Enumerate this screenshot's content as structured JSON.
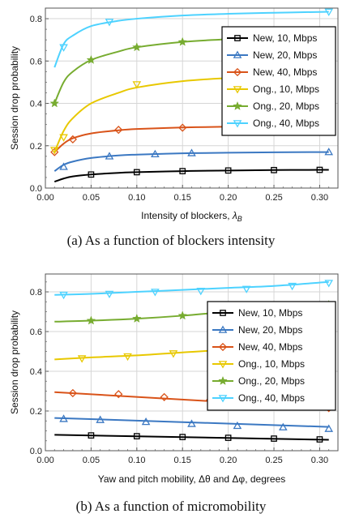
{
  "chart_data": [
    {
      "type": "line",
      "xlabel": "Intensity of blockers, ",
      "xlabel_symbol": "λ",
      "xlabel_sub": "B",
      "ylabel": "Session drop probability",
      "xlim": [
        0,
        0.32
      ],
      "ylim": [
        0,
        0.85
      ],
      "xticks": [
        "0.00",
        "0.05",
        "0.10",
        "0.15",
        "0.20",
        "0.25",
        "0.30"
      ],
      "yticks": [
        "0.0",
        "0.2",
        "0.4",
        "0.6",
        "0.8"
      ],
      "grid": true,
      "legend_position": "right",
      "caption": "(a) As a function of blockers intensity",
      "series": [
        {
          "name": "New, 10, Mbps",
          "color": "#000000",
          "marker": "square",
          "x": [
            0.01,
            0.02,
            0.03,
            0.05,
            0.08,
            0.1,
            0.15,
            0.2,
            0.25,
            0.3,
            0.31
          ],
          "y": [
            0.03,
            0.045,
            0.055,
            0.064,
            0.072,
            0.075,
            0.08,
            0.083,
            0.085,
            0.086,
            0.086
          ],
          "mx": [
            0.05,
            0.1,
            0.15,
            0.2,
            0.25,
            0.3
          ],
          "my": [
            0.064,
            0.075,
            0.08,
            0.083,
            0.085,
            0.086
          ]
        },
        {
          "name": "New, 20, Mbps",
          "color": "#3b78c2",
          "marker": "triangle",
          "x": [
            0.01,
            0.02,
            0.03,
            0.05,
            0.08,
            0.1,
            0.15,
            0.2,
            0.25,
            0.3,
            0.31
          ],
          "y": [
            0.08,
            0.11,
            0.125,
            0.142,
            0.154,
            0.158,
            0.164,
            0.167,
            0.169,
            0.17,
            0.17
          ],
          "mx": [
            0.02,
            0.07,
            0.12,
            0.16,
            0.31
          ],
          "my": [
            0.1,
            0.15,
            0.16,
            0.165,
            0.17
          ]
        },
        {
          "name": "New, 40, Mbps",
          "color": "#d95319",
          "marker": "diamond",
          "x": [
            0.01,
            0.02,
            0.03,
            0.05,
            0.08,
            0.1,
            0.15,
            0.2,
            0.25,
            0.3,
            0.31
          ],
          "y": [
            0.17,
            0.21,
            0.235,
            0.258,
            0.273,
            0.279,
            0.286,
            0.29,
            0.292,
            0.293,
            0.294
          ],
          "mx": [
            0.01,
            0.03,
            0.08,
            0.15,
            0.31
          ],
          "my": [
            0.17,
            0.23,
            0.275,
            0.285,
            0.295
          ]
        },
        {
          "name": "Ong., 10, Mbps",
          "color": "#e8c800",
          "marker": "triangle-down",
          "x": [
            0.01,
            0.02,
            0.03,
            0.05,
            0.08,
            0.1,
            0.15,
            0.2,
            0.25,
            0.3,
            0.31
          ],
          "y": [
            0.17,
            0.27,
            0.33,
            0.4,
            0.45,
            0.475,
            0.505,
            0.52,
            0.53,
            0.54,
            0.54
          ],
          "mx": [
            0.01,
            0.02,
            0.1,
            0.31
          ],
          "my": [
            0.18,
            0.24,
            0.49,
            0.54
          ]
        },
        {
          "name": "Ong., 20, Mbps",
          "color": "#77ac30",
          "marker": "star",
          "x": [
            0.01,
            0.02,
            0.03,
            0.05,
            0.08,
            0.1,
            0.15,
            0.2,
            0.25,
            0.3,
            0.31
          ],
          "y": [
            0.4,
            0.5,
            0.55,
            0.605,
            0.645,
            0.665,
            0.69,
            0.703,
            0.71,
            0.715,
            0.716
          ],
          "mx": [
            0.01,
            0.05,
            0.1,
            0.15,
            0.31
          ],
          "my": [
            0.4,
            0.605,
            0.665,
            0.69,
            0.716
          ]
        },
        {
          "name": "Ong., 40, Mbps",
          "color": "#4dd2ff",
          "marker": "triangle-down",
          "x": [
            0.01,
            0.02,
            0.03,
            0.05,
            0.08,
            0.1,
            0.15,
            0.2,
            0.25,
            0.3,
            0.31
          ],
          "y": [
            0.57,
            0.68,
            0.72,
            0.765,
            0.79,
            0.8,
            0.815,
            0.823,
            0.828,
            0.832,
            0.833
          ],
          "mx": [
            0.02,
            0.07,
            0.31
          ],
          "my": [
            0.665,
            0.785,
            0.833
          ]
        }
      ]
    },
    {
      "type": "line",
      "xlabel": "Yaw and pitch mobility, Δθ and Δφ, degrees",
      "ylabel": "Session drop probability",
      "xlim": [
        0,
        0.32
      ],
      "ylim": [
        0,
        0.89
      ],
      "xticks": [
        "0.00",
        "0.05",
        "0.10",
        "0.15",
        "0.20",
        "0.25",
        "0.30"
      ],
      "yticks": [
        "0.0",
        "0.2",
        "0.4",
        "0.6",
        "0.8"
      ],
      "grid": true,
      "legend_position": "right",
      "caption": "(b) As a function of micromobility",
      "series": [
        {
          "name": "New, 10, Mbps",
          "color": "#000000",
          "marker": "square",
          "x": [
            0.01,
            0.31
          ],
          "y": [
            0.08,
            0.055
          ],
          "mx": [
            0.05,
            0.1,
            0.15,
            0.2,
            0.25,
            0.3
          ],
          "my": [
            0.077,
            0.073,
            0.069,
            0.065,
            0.061,
            0.057
          ]
        },
        {
          "name": "New, 20, Mbps",
          "color": "#3b78c2",
          "marker": "triangle",
          "x": [
            0.01,
            0.31
          ],
          "y": [
            0.165,
            0.12
          ],
          "mx": [
            0.02,
            0.06,
            0.11,
            0.16,
            0.21,
            0.26,
            0.31
          ],
          "my": [
            0.16,
            0.155,
            0.145,
            0.135,
            0.125,
            0.118,
            0.11
          ]
        },
        {
          "name": "New, 40, Mbps",
          "color": "#d95319",
          "marker": "diamond",
          "x": [
            0.01,
            0.31
          ],
          "y": [
            0.295,
            0.215
          ],
          "mx": [
            0.03,
            0.08,
            0.13,
            0.18,
            0.23,
            0.31
          ],
          "my": [
            0.29,
            0.285,
            0.27,
            0.255,
            0.24,
            0.215
          ]
        },
        {
          "name": "Ong., 10, Mbps",
          "color": "#e8c800",
          "marker": "triangle-down",
          "x": [
            0.01,
            0.05,
            0.1,
            0.15,
            0.2,
            0.25,
            0.31
          ],
          "y": [
            0.46,
            0.47,
            0.48,
            0.495,
            0.51,
            0.53,
            0.56
          ],
          "mx": [
            0.04,
            0.09,
            0.14,
            0.19,
            0.31
          ],
          "my": [
            0.465,
            0.475,
            0.49,
            0.505,
            0.56
          ]
        },
        {
          "name": "Ong., 20, Mbps",
          "color": "#77ac30",
          "marker": "star",
          "x": [
            0.01,
            0.05,
            0.1,
            0.15,
            0.2,
            0.25,
            0.31
          ],
          "y": [
            0.65,
            0.655,
            0.665,
            0.68,
            0.7,
            0.715,
            0.74
          ],
          "mx": [
            0.05,
            0.1,
            0.15,
            0.2,
            0.31
          ],
          "my": [
            0.655,
            0.665,
            0.68,
            0.7,
            0.735
          ]
        },
        {
          "name": "Ong., 40, Mbps",
          "color": "#4dd2ff",
          "marker": "triangle-down",
          "x": [
            0.01,
            0.05,
            0.1,
            0.15,
            0.2,
            0.25,
            0.31
          ],
          "y": [
            0.785,
            0.79,
            0.8,
            0.81,
            0.82,
            0.83,
            0.85
          ],
          "mx": [
            0.02,
            0.07,
            0.12,
            0.17,
            0.22,
            0.27,
            0.31
          ],
          "my": [
            0.785,
            0.79,
            0.8,
            0.805,
            0.815,
            0.83,
            0.845
          ]
        }
      ]
    }
  ]
}
